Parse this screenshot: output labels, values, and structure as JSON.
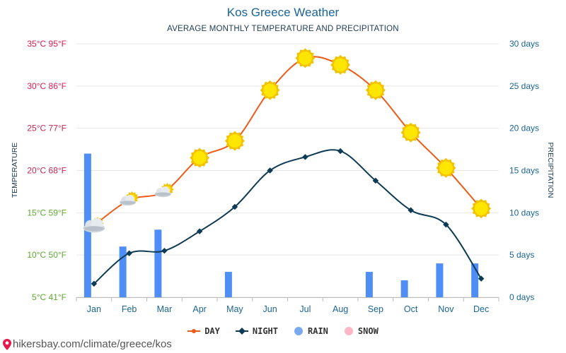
{
  "title": "Kos Greece Weather",
  "subtitle": "AVERAGE MONTHLY TEMPERATURE AND PRECIPITATION",
  "footer": "hikersbay.com/climate/greece/kos",
  "colors": {
    "day": "#ee5a17",
    "night": "#0d3b55",
    "rain": "#4f8ef5",
    "snow": "#ffb6c8",
    "grid": "#e6e6e6",
    "right_axis": "#1a6496",
    "axis_hot": "#e8174b",
    "axis_warm": "#c7264e",
    "axis_mild": "#5fa832",
    "sun": "#ffe600"
  },
  "chart_data": {
    "type": "line+bar",
    "categories": [
      "Jan",
      "Feb",
      "Mar",
      "Apr",
      "May",
      "Jun",
      "Jul",
      "Aug",
      "Sep",
      "Oct",
      "Nov",
      "Dec"
    ],
    "series": [
      {
        "name": "DAY",
        "unit": "°C",
        "values": [
          13.5,
          16.5,
          17.5,
          21.5,
          23.5,
          29.5,
          33.3,
          32.5,
          29.5,
          24.5,
          20.3,
          15.5
        ]
      },
      {
        "name": "NIGHT",
        "unit": "°C",
        "values": [
          6.6,
          10.2,
          10.5,
          12.8,
          15.7,
          20.0,
          21.6,
          22.3,
          18.8,
          15.3,
          13.6,
          7.2
        ]
      },
      {
        "name": "RAIN",
        "unit": "days",
        "values": [
          17,
          6,
          8,
          0,
          3,
          0,
          0,
          0,
          3,
          2,
          4,
          4
        ]
      },
      {
        "name": "SNOW",
        "unit": "days",
        "values": [
          0,
          0,
          0,
          0,
          0,
          0,
          0,
          0,
          0,
          0,
          0,
          0
        ]
      }
    ],
    "weather_icons": [
      "cloudy",
      "partly-cloudy",
      "partly-cloudy",
      "sunny",
      "sunny",
      "sunny",
      "sunny",
      "sunny",
      "sunny",
      "sunny",
      "sunny",
      "sunny"
    ],
    "left_axis": {
      "label": "TEMPERATURE",
      "ylim": [
        5,
        35
      ],
      "ticks": [
        {
          "value": 35,
          "label": "35°C 95°F"
        },
        {
          "value": 30,
          "label": "30°C 86°F"
        },
        {
          "value": 25,
          "label": "25°C 77°F"
        },
        {
          "value": 20,
          "label": "20°C 68°F"
        },
        {
          "value": 15,
          "label": "15°C 59°F"
        },
        {
          "value": 10,
          "label": "10°C 50°F"
        },
        {
          "value": 5,
          "label": "5°C 41°F"
        }
      ]
    },
    "right_axis": {
      "label": "PRECIPITATION",
      "ylim": [
        0,
        30
      ],
      "ticks": [
        {
          "value": 30,
          "label": "30 days"
        },
        {
          "value": 25,
          "label": "25 days"
        },
        {
          "value": 20,
          "label": "20 days"
        },
        {
          "value": 15,
          "label": "15 days"
        },
        {
          "value": 10,
          "label": "10 days"
        },
        {
          "value": 5,
          "label": "5 days"
        },
        {
          "value": 0,
          "label": "0 days"
        }
      ]
    },
    "legend": [
      "DAY",
      "NIGHT",
      "RAIN",
      "SNOW"
    ],
    "legend_position": "bottom-center",
    "grid": true
  }
}
